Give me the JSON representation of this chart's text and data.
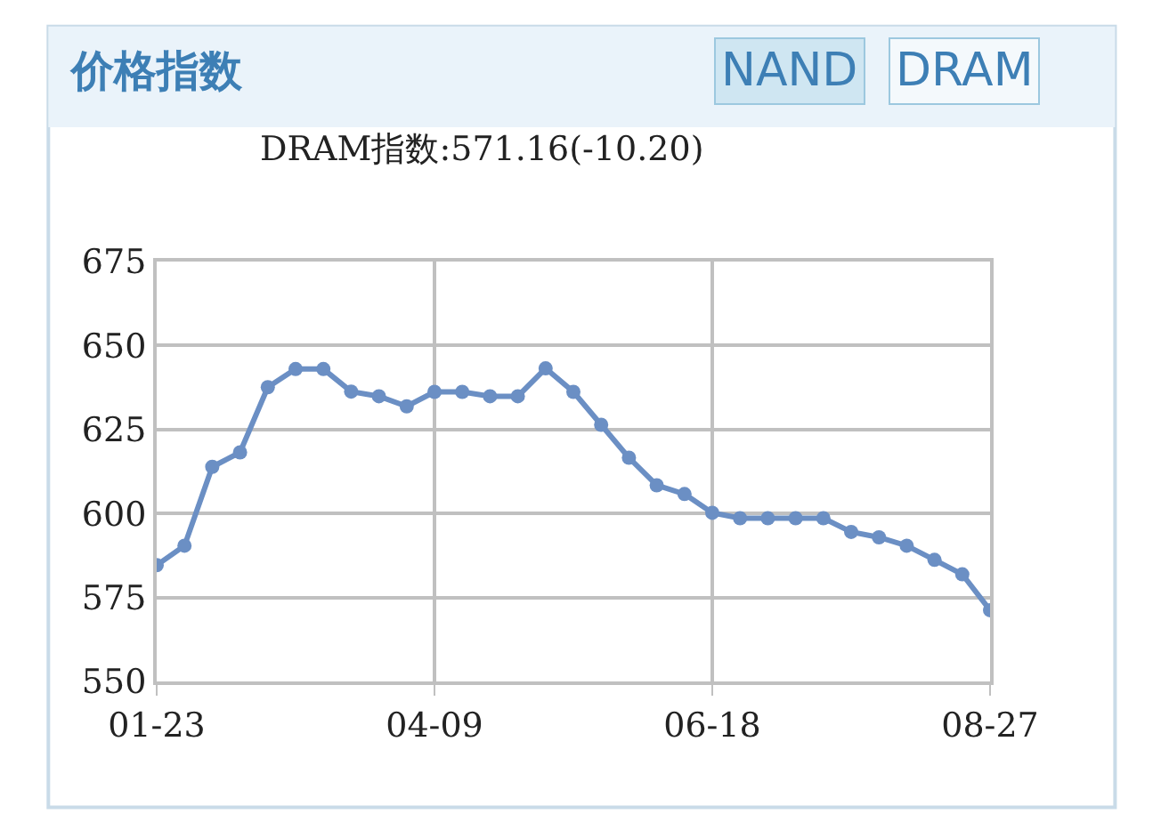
{
  "chart_data": {
    "type": "line",
    "title": "价格指数",
    "subtitle": "DRAM指数:571.16(-10.20)",
    "annotations": [
      "NAND",
      "DRAM"
    ],
    "categories": [
      "01-23",
      null,
      null,
      null,
      null,
      null,
      null,
      null,
      null,
      null,
      "04-09",
      null,
      null,
      null,
      null,
      null,
      null,
      null,
      null,
      null,
      "06-18",
      null,
      null,
      null,
      null,
      null,
      null,
      null,
      null,
      null,
      "08-27"
    ],
    "series": [
      {
        "color": "#6b8fc4",
        "values": [
          584.6,
          590.4,
          613.9,
          618.2,
          637.6,
          643.0,
          643.0,
          636.3,
          634.9,
          631.9,
          636.2,
          636.2,
          634.9,
          634.9,
          643.2,
          636.2,
          626.4,
          616.6,
          608.4,
          605.8,
          600.2,
          598.6,
          598.6,
          598.6,
          598.6,
          594.5,
          592.9,
          590.4,
          586.2,
          581.9,
          571.2
        ]
      }
    ],
    "ylim": [
      550,
      675
    ],
    "yticks": [
      550,
      575,
      600,
      625,
      650,
      675
    ],
    "grid": true,
    "marker": "circle",
    "line_style": "solid"
  }
}
